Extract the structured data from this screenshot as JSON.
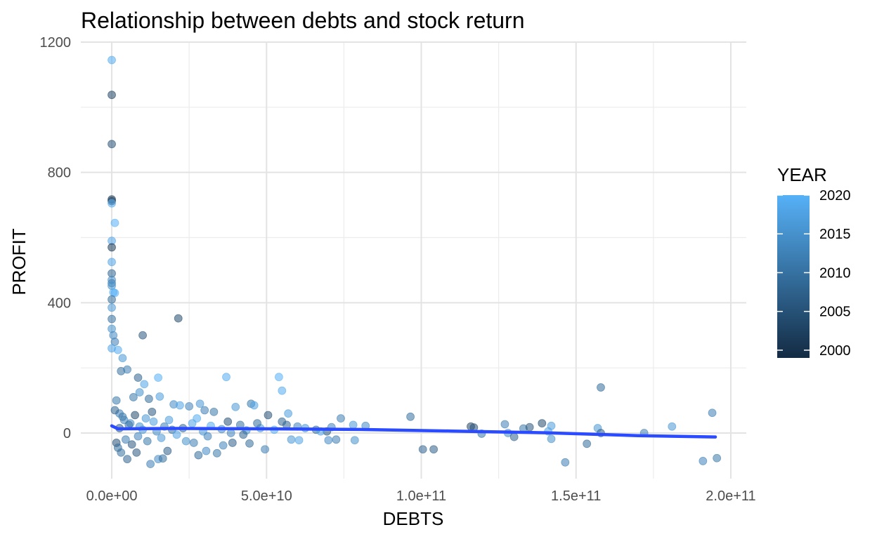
{
  "chart_data": {
    "type": "scatter",
    "title": "Relationship between debts and stock return",
    "xlabel": "DEBTS",
    "ylabel": "PROFIT",
    "xlim": [
      -10000000000.0,
      205000000000.0
    ],
    "ylim": [
      -140,
      1200
    ],
    "x_ticks": [
      {
        "value": 0,
        "label": "0.0e+00"
      },
      {
        "value": 50000000000,
        "label": "5.0e+10"
      },
      {
        "value": 100000000000,
        "label": "1.0e+11"
      },
      {
        "value": 150000000000,
        "label": "1.5e+11"
      },
      {
        "value": 200000000000,
        "label": "2.0e+11"
      }
    ],
    "y_ticks": [
      {
        "value": 0,
        "label": "0"
      },
      {
        "value": 400,
        "label": "400"
      },
      {
        "value": 800,
        "label": "800"
      },
      {
        "value": 1200,
        "label": "1200"
      }
    ],
    "grid": true,
    "legend": {
      "title": "YEAR",
      "placement": "right",
      "type": "colorbar",
      "range": [
        1999,
        2020
      ],
      "ticks": [
        {
          "value": 2020,
          "label": "2020"
        },
        {
          "value": 2015,
          "label": "2015"
        },
        {
          "value": 2010,
          "label": "2010"
        },
        {
          "value": 2005,
          "label": "2005"
        },
        {
          "value": 2000,
          "label": "2000"
        }
      ],
      "color_low": "#132b43",
      "color_high": "#56b1f7"
    },
    "smooth_line": {
      "color": "#2a4bff",
      "points": [
        [
          0,
          22
        ],
        [
          2000000000,
          13
        ],
        [
          20000000000,
          14
        ],
        [
          50000000000,
          13
        ],
        [
          80000000000,
          11
        ],
        [
          110000000000,
          6
        ],
        [
          140000000000,
          1
        ],
        [
          170000000000,
          -8
        ],
        [
          195000000000,
          -12
        ]
      ]
    },
    "points": [
      [
        0,
        1145,
        2019
      ],
      [
        0,
        1038,
        2003
      ],
      [
        0,
        887,
        2005
      ],
      [
        0,
        717,
        2001
      ],
      [
        0,
        712,
        2002
      ],
      [
        0,
        705,
        2019
      ],
      [
        1000000000,
        645,
        2020
      ],
      [
        0,
        590,
        2018
      ],
      [
        0,
        570,
        2001
      ],
      [
        0,
        525,
        2018
      ],
      [
        0,
        490,
        2008
      ],
      [
        0,
        470,
        2014
      ],
      [
        0,
        460,
        2012
      ],
      [
        0,
        452,
        2015
      ],
      [
        500000000,
        432,
        2019
      ],
      [
        1000000000,
        430,
        2020
      ],
      [
        0,
        410,
        2009
      ],
      [
        0,
        385,
        2016
      ],
      [
        0,
        350,
        2010
      ],
      [
        0,
        320,
        2015
      ],
      [
        500000000,
        300,
        2014
      ],
      [
        1000000000,
        280,
        2012
      ],
      [
        0,
        260,
        2018
      ],
      [
        2000000000,
        255,
        2019
      ],
      [
        3500000000,
        230,
        2016
      ],
      [
        10000000000,
        300,
        2006
      ],
      [
        21500000000,
        352,
        2004
      ],
      [
        3000000000,
        190,
        2010
      ],
      [
        5000000000,
        195,
        2012
      ],
      [
        8500000000,
        170,
        2008
      ],
      [
        15000000000,
        170,
        2020
      ],
      [
        37000000000,
        172,
        2019
      ],
      [
        54000000000,
        172,
        2020
      ],
      [
        55000000000,
        130,
        2019
      ],
      [
        10500000000,
        150,
        2018
      ],
      [
        9000000000,
        125,
        2015
      ],
      [
        7000000000,
        110,
        2011
      ],
      [
        12000000000,
        105,
        2009
      ],
      [
        15500000000,
        112,
        2017
      ],
      [
        20000000000,
        88,
        2014
      ],
      [
        22000000000,
        85,
        2018
      ],
      [
        25000000000,
        82,
        2013
      ],
      [
        28500000000,
        90,
        2016
      ],
      [
        30000000000,
        70,
        2012
      ],
      [
        33000000000,
        65,
        2011
      ],
      [
        40000000000,
        80,
        2016
      ],
      [
        45000000000,
        90,
        2011
      ],
      [
        46000000000,
        85,
        2018
      ],
      [
        50500000000,
        55,
        2005
      ],
      [
        55000000000,
        35,
        2008
      ],
      [
        57000000000,
        60,
        2017
      ],
      [
        60000000000,
        20,
        2013
      ],
      [
        66000000000,
        10,
        2009
      ],
      [
        69500000000,
        5,
        2006
      ],
      [
        74000000000,
        45,
        2012
      ],
      [
        78000000000,
        25,
        2016
      ],
      [
        82000000000,
        22,
        2014
      ],
      [
        96500000000,
        50,
        2010
      ],
      [
        100500000000,
        -50,
        2008
      ],
      [
        104000000000,
        -50,
        2007
      ],
      [
        116000000000,
        20,
        2003
      ],
      [
        117000000000,
        17,
        2005
      ],
      [
        119500000000,
        -2,
        2011
      ],
      [
        127000000000,
        27,
        2012
      ],
      [
        128000000000,
        0,
        2014
      ],
      [
        130000000000,
        -12,
        2008
      ],
      [
        133000000000,
        14,
        2011
      ],
      [
        135000000000,
        18,
        2006
      ],
      [
        139000000000,
        30,
        2004
      ],
      [
        141000000000,
        5,
        2018
      ],
      [
        142000000000,
        22,
        2017
      ],
      [
        142000000000,
        -18,
        2015
      ],
      [
        153500000000,
        -33,
        2009
      ],
      [
        157000000000,
        15,
        2016
      ],
      [
        158000000000,
        140,
        2009
      ],
      [
        158000000000,
        0,
        2007
      ],
      [
        146500000000,
        -90,
        2012
      ],
      [
        172000000000,
        0,
        2012
      ],
      [
        181000000000,
        20,
        2016
      ],
      [
        191000000000,
        -86,
        2013
      ],
      [
        194000000000,
        62,
        2012
      ],
      [
        195500000000,
        -77,
        2011
      ],
      [
        3000000000,
        -60,
        2010
      ],
      [
        5000000000,
        -80,
        2008
      ],
      [
        8000000000,
        -60,
        2006
      ],
      [
        12500000000,
        -95,
        2012
      ],
      [
        15000000000,
        -80,
        2014
      ],
      [
        16500000000,
        -78,
        2010
      ],
      [
        18000000000,
        -55,
        2007
      ],
      [
        26500000000,
        -30,
        2012
      ],
      [
        28000000000,
        -68,
        2009
      ],
      [
        30500000000,
        -55,
        2014
      ],
      [
        34000000000,
        -62,
        2011
      ],
      [
        36000000000,
        -38,
        2013
      ],
      [
        39000000000,
        -30,
        2007
      ],
      [
        44500000000,
        -32,
        2009
      ],
      [
        49500000000,
        -50,
        2012
      ],
      [
        58000000000,
        -20,
        2016
      ],
      [
        60500000000,
        -22,
        2018
      ],
      [
        70000000000,
        -22,
        2014
      ],
      [
        72500000000,
        -20,
        2012
      ],
      [
        78500000000,
        -22,
        2015
      ],
      [
        1500000000,
        100,
        2011
      ],
      [
        2500000000,
        60,
        2012
      ],
      [
        4000000000,
        40,
        2013
      ],
      [
        6000000000,
        30,
        2014
      ],
      [
        9000000000,
        20,
        2015
      ],
      [
        11000000000,
        45,
        2016
      ],
      [
        13500000000,
        35,
        2017
      ],
      [
        17000000000,
        20,
        2012
      ],
      [
        19500000000,
        10,
        2010
      ],
      [
        23000000000,
        15,
        2009
      ],
      [
        26000000000,
        30,
        2018
      ],
      [
        29500000000,
        5,
        2016
      ],
      [
        32000000000,
        22,
        2019
      ],
      [
        35500000000,
        12,
        2014
      ],
      [
        38500000000,
        0,
        2013
      ],
      [
        41500000000,
        25,
        2010
      ],
      [
        43500000000,
        8,
        2015
      ],
      [
        48000000000,
        15,
        2017
      ],
      [
        52500000000,
        10,
        2019
      ],
      [
        56500000000,
        25,
        2008
      ],
      [
        62500000000,
        15,
        2016
      ],
      [
        67500000000,
        5,
        2018
      ],
      [
        71000000000,
        18,
        2013
      ],
      [
        1000000000,
        70,
        2008
      ],
      [
        1500000000,
        -30,
        2005
      ],
      [
        2000000000,
        -45,
        2009
      ],
      [
        2500000000,
        15,
        2007
      ],
      [
        3500000000,
        50,
        2011
      ],
      [
        4500000000,
        -20,
        2012
      ],
      [
        5500000000,
        25,
        2010
      ],
      [
        6500000000,
        -35,
        2006
      ],
      [
        7500000000,
        55,
        2004
      ],
      [
        8500000000,
        -10,
        2013
      ],
      [
        10000000000,
        10,
        2015
      ],
      [
        11500000000,
        -25,
        2011
      ],
      [
        13000000000,
        65,
        2006
      ],
      [
        14500000000,
        5,
        2014
      ],
      [
        16000000000,
        -15,
        2016
      ],
      [
        18500000000,
        40,
        2017
      ],
      [
        21000000000,
        -5,
        2018
      ],
      [
        24000000000,
        -25,
        2015
      ],
      [
        27500000000,
        45,
        2019
      ],
      [
        31000000000,
        -10,
        2013
      ],
      [
        37500000000,
        35,
        2005
      ],
      [
        42500000000,
        -5,
        2008
      ],
      [
        47000000000,
        30,
        2009
      ]
    ]
  }
}
